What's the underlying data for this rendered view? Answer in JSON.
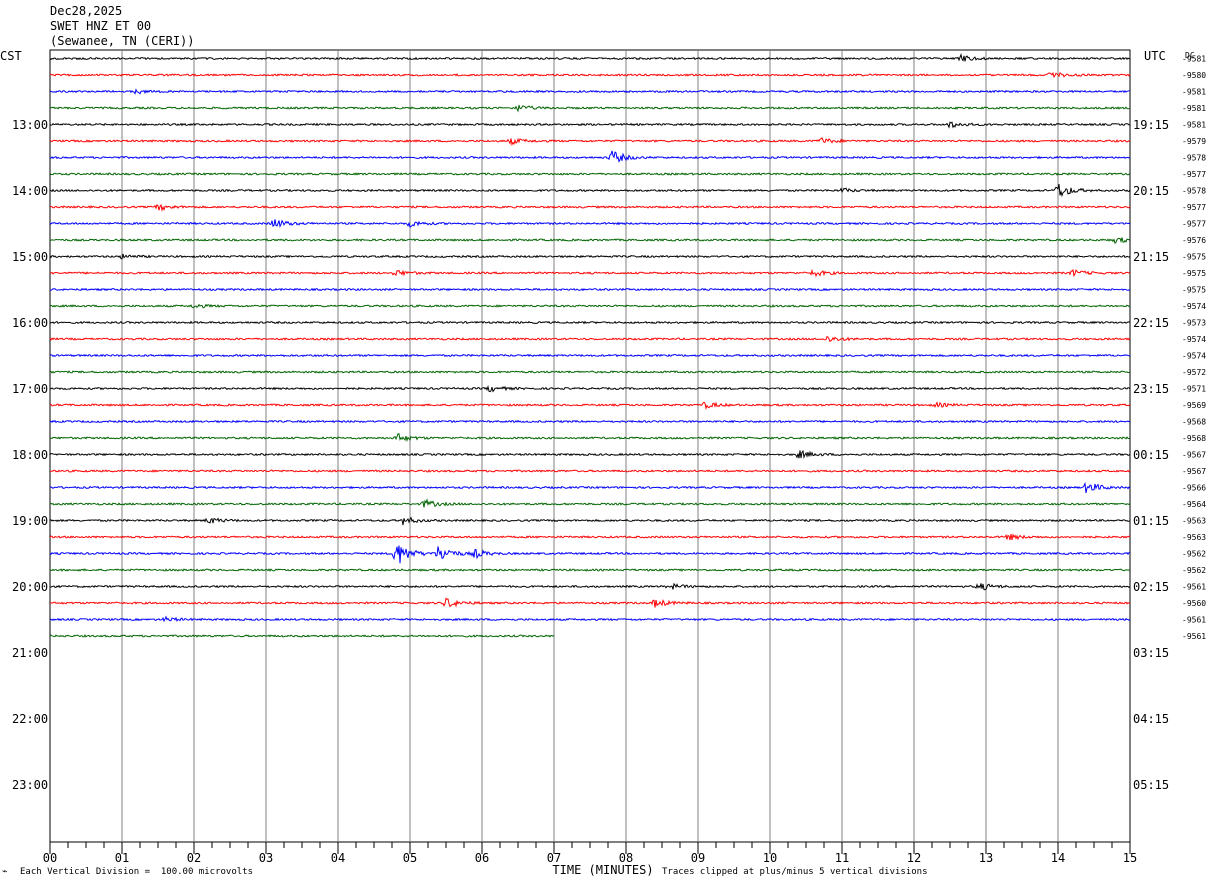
{
  "header": {
    "date": "Dec28,2025",
    "station": "SWET HNZ ET 00",
    "location": "(Sewanee, TN (CERI))"
  },
  "chart_data": {
    "type": "line",
    "left_axis_label": "CST",
    "right_axis_label": "UTC",
    "dc_label": "DC",
    "xlabel": "TIME (MINUTES)",
    "x_ticks": [
      "00",
      "01",
      "02",
      "03",
      "04",
      "05",
      "06",
      "07",
      "08",
      "09",
      "10",
      "11",
      "12",
      "13",
      "14",
      "15"
    ],
    "xlim": [
      0,
      15
    ],
    "left_hour_labels": [
      "13:00",
      "14:00",
      "15:00",
      "16:00",
      "17:00",
      "18:00",
      "19:00",
      "20:00",
      "21:00",
      "22:00",
      "23:00"
    ],
    "right_hour_labels": [
      "19:15",
      "20:15",
      "21:15",
      "22:15",
      "23:15",
      "00:15",
      "01:15",
      "02:15",
      "03:15",
      "04:15",
      "05:15"
    ],
    "trace_colors": [
      "#000000",
      "#ff0000",
      "#0000ff",
      "#006400"
    ],
    "dc_values": [
      "-9581",
      "-9580",
      "-9581",
      "-9581",
      "-9581",
      "-9579",
      "-9578",
      "-9577",
      "-9578",
      "-9577",
      "-9577",
      "-9576",
      "-9575",
      "-9575",
      "-9575",
      "-9574",
      "-9573",
      "-9574",
      "-9574",
      "-9572",
      "-9571",
      "-9569",
      "-9568",
      "-9568",
      "-9567",
      "-9567",
      "-9566",
      "-9564",
      "-9563",
      "-9563",
      "-9562",
      "-9562",
      "-9561",
      "-9560",
      "-9561",
      "-9561"
    ],
    "last_trace_end_minute": 7,
    "events": [
      {
        "trace": 0,
        "minute": 12.65,
        "amp": 3
      },
      {
        "trace": 1,
        "minute": 13.9,
        "amp": 3
      },
      {
        "trace": 2,
        "minute": 1.2,
        "amp": 2
      },
      {
        "trace": 3,
        "minute": 6.5,
        "amp": 3
      },
      {
        "trace": 4,
        "minute": 12.5,
        "amp": 3
      },
      {
        "trace": 5,
        "minute": 6.4,
        "amp": 3
      },
      {
        "trace": 5,
        "minute": 10.7,
        "amp": 3
      },
      {
        "trace": 6,
        "minute": 7.8,
        "amp": 7
      },
      {
        "trace": 8,
        "minute": 11.0,
        "amp": 2
      },
      {
        "trace": 8,
        "minute": 14.0,
        "amp": 8
      },
      {
        "trace": 9,
        "minute": 1.5,
        "amp": 3
      },
      {
        "trace": 10,
        "minute": 3.1,
        "amp": 5
      },
      {
        "trace": 10,
        "minute": 5.0,
        "amp": 3
      },
      {
        "trace": 11,
        "minute": 14.8,
        "amp": 3
      },
      {
        "trace": 12,
        "minute": 1.0,
        "amp": 2
      },
      {
        "trace": 13,
        "minute": 4.8,
        "amp": 3
      },
      {
        "trace": 13,
        "minute": 10.6,
        "amp": 3
      },
      {
        "trace": 13,
        "minute": 14.2,
        "amp": 3
      },
      {
        "trace": 15,
        "minute": 2.0,
        "amp": 2
      },
      {
        "trace": 17,
        "minute": 10.8,
        "amp": 3
      },
      {
        "trace": 20,
        "minute": 6.1,
        "amp": 3
      },
      {
        "trace": 21,
        "minute": 9.1,
        "amp": 3
      },
      {
        "trace": 21,
        "minute": 12.3,
        "amp": 2
      },
      {
        "trace": 23,
        "minute": 4.8,
        "amp": 5
      },
      {
        "trace": 24,
        "minute": 10.4,
        "amp": 4
      },
      {
        "trace": 26,
        "minute": 14.4,
        "amp": 6
      },
      {
        "trace": 27,
        "minute": 5.2,
        "amp": 4
      },
      {
        "trace": 28,
        "minute": 2.2,
        "amp": 3
      },
      {
        "trace": 28,
        "minute": 4.9,
        "amp": 4
      },
      {
        "trace": 29,
        "minute": 13.3,
        "amp": 3
      },
      {
        "trace": 30,
        "minute": 4.8,
        "amp": 14
      },
      {
        "trace": 30,
        "minute": 5.4,
        "amp": 9
      },
      {
        "trace": 30,
        "minute": 5.9,
        "amp": 4
      },
      {
        "trace": 32,
        "minute": 8.6,
        "amp": 3
      },
      {
        "trace": 32,
        "minute": 12.9,
        "amp": 4
      },
      {
        "trace": 33,
        "minute": 5.5,
        "amp": 5
      },
      {
        "trace": 33,
        "minute": 8.4,
        "amp": 4
      },
      {
        "trace": 34,
        "minute": 1.6,
        "amp": 2
      }
    ]
  },
  "footer": {
    "left_note": "Each Vertical Division =  100.00 microvolts",
    "right_note": "Traces clipped at plus/minus 5 vertical divisions"
  }
}
